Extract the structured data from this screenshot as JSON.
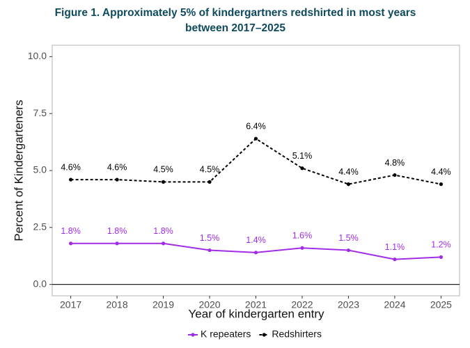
{
  "chart_data": {
    "type": "line",
    "title": "Figure 1. Approximately 5% of kindergartners redshirted in most years",
    "title_line2": "between 2017–2025",
    "x_label": "Year of kindergarten entry",
    "y_label": "Percent of Kindergarteners",
    "x": [
      2017,
      2018,
      2019,
      2020,
      2021,
      2022,
      2023,
      2024,
      2025
    ],
    "xlim": [
      2016.6,
      2025.4
    ],
    "xticks": [
      2017,
      2018,
      2019,
      2020,
      2021,
      2022,
      2023,
      2024,
      2025
    ],
    "ylim": [
      -0.5,
      10.5
    ],
    "yticks": [
      {
        "value": 0,
        "label": "0.0"
      },
      {
        "value": 2.5,
        "label": "2.5"
      },
      {
        "value": 5,
        "label": "5.0"
      },
      {
        "value": 7.5,
        "label": "7.5"
      },
      {
        "value": 10,
        "label": "10.0"
      }
    ],
    "grid": false,
    "legend_position": "bottom",
    "series": [
      {
        "name": "K repeaters",
        "color": "#a12ce8",
        "dashed": false,
        "values": [
          1.8,
          1.8,
          1.8,
          1.5,
          1.4,
          1.6,
          1.5,
          1.1,
          1.2
        ],
        "value_labels": [
          "1.8%",
          "1.8%",
          "1.8%",
          "1.5%",
          "1.4%",
          "1.6%",
          "1.5%",
          "1.1%",
          "1.2%"
        ]
      },
      {
        "name": "Redshirters",
        "color": "#000000",
        "dashed": true,
        "values": [
          4.6,
          4.6,
          4.5,
          4.5,
          6.4,
          5.1,
          4.4,
          4.8,
          4.4
        ],
        "value_labels": [
          "4.6%",
          "4.6%",
          "4.5%",
          "4.5%",
          "6.4%",
          "5.1%",
          "4.4%",
          "4.8%",
          "4.4%"
        ]
      }
    ]
  }
}
